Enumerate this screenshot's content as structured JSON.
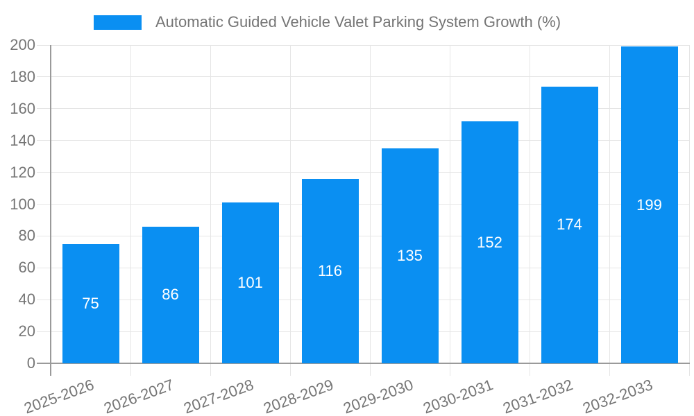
{
  "legend": {
    "label": "Automatic Guided Vehicle Valet Parking System Growth (%)"
  },
  "chart_data": {
    "type": "bar",
    "title": "",
    "xlabel": "",
    "ylabel": "",
    "categories": [
      "2025-2026",
      "2026-2027",
      "2027-2028",
      "2028-2029",
      "2029-2030",
      "2030-2031",
      "2031-2032",
      "2032-2033"
    ],
    "series": [
      {
        "name": "Automatic Guided Vehicle Valet Parking System Growth (%)",
        "values": [
          75,
          86,
          101,
          116,
          135,
          152,
          174,
          199
        ]
      }
    ],
    "ylim": [
      0,
      200
    ],
    "ytick_step": 20,
    "yticks": [
      0,
      20,
      40,
      60,
      80,
      100,
      120,
      140,
      160,
      180,
      200
    ],
    "grid": true,
    "legend_position": "top",
    "bar_label_position": "inside-middle",
    "colors": {
      "bar": "#0a8ff2",
      "bar_label": "#ffffff",
      "axis_text": "#757575",
      "grid_line": "#e5e5e5",
      "axis_line": "#9a9a9a",
      "background": "#ffffff"
    }
  }
}
